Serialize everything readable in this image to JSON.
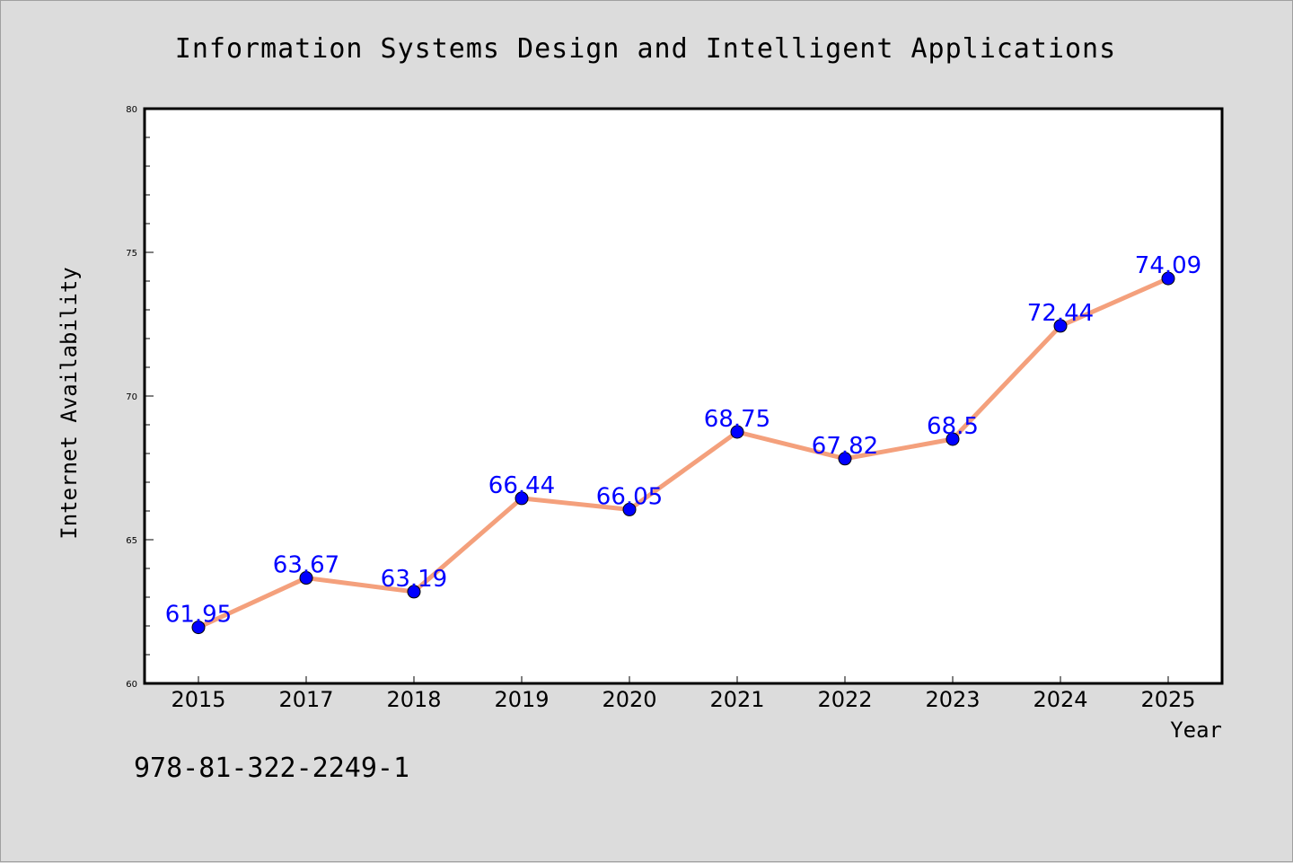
{
  "chart_data": {
    "type": "line",
    "title": "Information Systems Design and Intelligent Applications",
    "xlabel": "Year",
    "ylabel": "Internet Availability",
    "categories": [
      "2015",
      "2017",
      "2018",
      "2019",
      "2020",
      "2021",
      "2022",
      "2023",
      "2024",
      "2025"
    ],
    "series": [
      {
        "values": [
          61.95,
          63.67,
          63.19,
          66.44,
          66.05,
          68.75,
          67.82,
          68.5,
          72.44,
          74.09
        ],
        "data_labels": [
          "61.95",
          "63.67",
          "63.19",
          "66.44",
          "66.05",
          "68.75",
          "67.82",
          "68.5",
          "72.44",
          "74.09"
        ],
        "line_color": "#f4a07c",
        "marker_color": "#0000ff"
      }
    ],
    "ylim": [
      60,
      80
    ],
    "yticks": [
      "60",
      "65",
      "70",
      "75",
      "80"
    ],
    "grid": false,
    "legend": "none",
    "label_color": "#0000ff"
  },
  "footer": {
    "isbn": "978-81-322-2249-1"
  }
}
